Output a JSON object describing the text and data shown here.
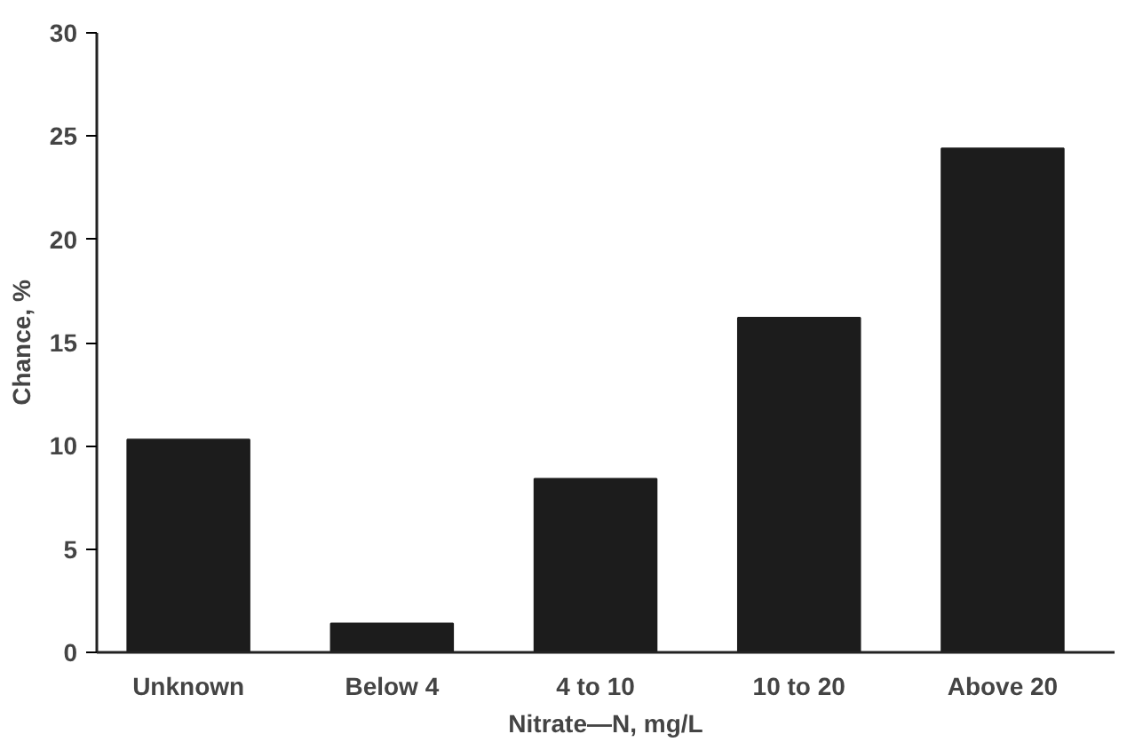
{
  "chart_data": {
    "type": "bar",
    "xlabel": "Nitrate—N, mg/L",
    "ylabel": "Chance, %",
    "categories": [
      "Unknown",
      "Below 4",
      "4 to 10",
      "10 to 20",
      "Above 20"
    ],
    "values": [
      10.3,
      1.4,
      8.4,
      16.2,
      24.4
    ],
    "color": "#1c1c1c",
    "ylim": [
      0,
      30
    ],
    "yticks": [
      0,
      5,
      10,
      15,
      20,
      25,
      30
    ],
    "grid": false
  }
}
